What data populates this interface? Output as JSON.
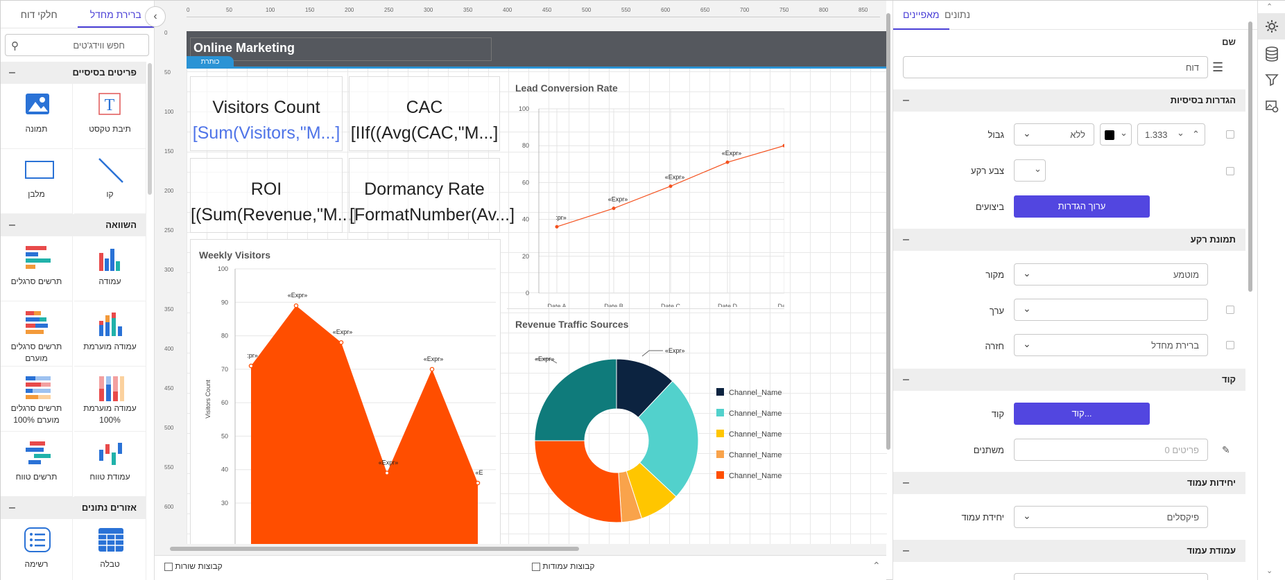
{
  "left_panel": {
    "tabs": [
      "ברירת מחדל",
      "חלקי דוח"
    ],
    "search_placeholder": "חפש ווידג'טים",
    "sections": [
      {
        "title": "פריטים בסיסיים",
        "items": [
          "תיבת טקסט",
          "תמונה",
          "קו",
          "מלבן"
        ]
      },
      {
        "title": "השוואה",
        "items": [
          "עמודה",
          "תרשים סרגלים",
          "עמודה מוערמת",
          "תרשים סרגלים מוערם",
          "עמודה מוערמת 100%",
          "תרשים סרגלים מוערם 100%",
          "עמודת טווח",
          "תרשים טווח"
        ]
      },
      {
        "title": "אזורים נתונים",
        "items": [
          "טבלה",
          "רשימה"
        ]
      }
    ],
    "collapse_icon": "chevron-left-icon"
  },
  "report": {
    "title": "Online Marketing",
    "header_tag": "כותרת",
    "kpis": [
      {
        "label": "Visitors Count",
        "expr": "[Sum(Visitors,\"M...]"
      },
      {
        "label": "CAC",
        "expr": "[IIf((Avg(CAC,\"M...]"
      },
      {
        "label": "ROI",
        "expr": "[(Sum(Revenue,\"M...]"
      },
      {
        "label": "Dormancy Rate",
        "expr": "[FormatNumber(Av...]"
      }
    ],
    "widgets": {
      "lead_title": "Lead Conversion Rate",
      "weekly_title": "Weekly Visitors",
      "revenue_title": "Revenue Traffic Sources"
    },
    "ruler_top": [
      "0",
      "50",
      "100",
      "150",
      "200",
      "250",
      "300",
      "350",
      "400",
      "450",
      "500",
      "550",
      "600",
      "650",
      "700",
      "750",
      "800",
      "850"
    ],
    "ruler_left": [
      "0",
      "50",
      "100",
      "150",
      "200",
      "250",
      "300",
      "350",
      "400",
      "450",
      "500",
      "550",
      "600"
    ]
  },
  "chart_data": [
    {
      "type": "line",
      "title": "Lead Conversion Rate",
      "categories": [
        "Date A",
        "Date B",
        "Date C",
        "Date D",
        "Date"
      ],
      "values": [
        36,
        46,
        58,
        71,
        80
      ],
      "data_labels": [
        ":pr»",
        "«Expr»",
        "«Expr»",
        "«Expr»",
        "«"
      ],
      "ylim": [
        0,
        100
      ],
      "yticks": [
        0,
        20,
        40,
        60,
        80,
        100
      ],
      "color": "#f4511e"
    },
    {
      "type": "area",
      "title": "Weekly Visitors",
      "ylabel": "Visitors Count",
      "values": [
        71,
        89,
        78,
        39,
        70,
        36
      ],
      "data_labels": [
        ":pr»",
        "«Expr»",
        "«Expr»",
        "«Expr»",
        "«Expr»",
        "«E"
      ],
      "ylim": [
        30,
        100
      ],
      "yticks": [
        30,
        40,
        50,
        60,
        70,
        80,
        90,
        100
      ],
      "color": "#ff4e00"
    },
    {
      "type": "pie",
      "title": "Revenue Traffic Sources",
      "legend": [
        "Channel_Name",
        "Channel_Name",
        "Channel_Name",
        "Channel_Name",
        "Channel_Name"
      ],
      "legend_colors": [
        "#0c2340",
        "#52d1cc",
        "#ffc600",
        "#f9a34b",
        "#ff4e00"
      ],
      "data_labels": [
        "«Expr»",
        "«Expr»"
      ],
      "slices": [
        {
          "color": "#0c2340",
          "value": 12
        },
        {
          "color": "#52d1cc",
          "value": 25
        },
        {
          "color": "#ffc600",
          "value": 8
        },
        {
          "color": "#f9a34b",
          "value": 4
        },
        {
          "color": "#ff4e00",
          "value": 26
        },
        {
          "color": "#0f7b7b",
          "value": 25
        }
      ]
    }
  ],
  "bottom_bar": {
    "row_groups": "קבוצות שורות",
    "column_groups": "קבוצות עמודות"
  },
  "right_panel": {
    "tabs": [
      "מאפיינים",
      "נתונים"
    ],
    "name_label": "שם",
    "name_value": "דוח",
    "sections": {
      "basic": "הגדרות בסיסיות",
      "bg_image": "תמונת רקע",
      "code": "קוד",
      "page_units": "יחידות עמוד",
      "page_column": "עמודת עמוד"
    },
    "border_label": "גבול",
    "border_value": "ללא",
    "border_width": "1.333",
    "bg_color_label": "צבע רקע",
    "actions_label": "ביצועים",
    "edit_settings": "ערוך הגדרות",
    "source_label": "מקור",
    "source_value": "מוטמע",
    "value_label": "ערך",
    "repeat_label": "חזרה",
    "repeat_value": "ברירת מחדל",
    "code_label": "קוד",
    "code_button": "קוד...",
    "vars_label": "משתנים",
    "vars_value": "פריטים 0",
    "unit_label": "יחידת עמוד",
    "unit_value": "פיקסלים"
  },
  "rail_icons": [
    "gear-icon",
    "database-icon",
    "filter-icon",
    "image-settings-icon"
  ]
}
